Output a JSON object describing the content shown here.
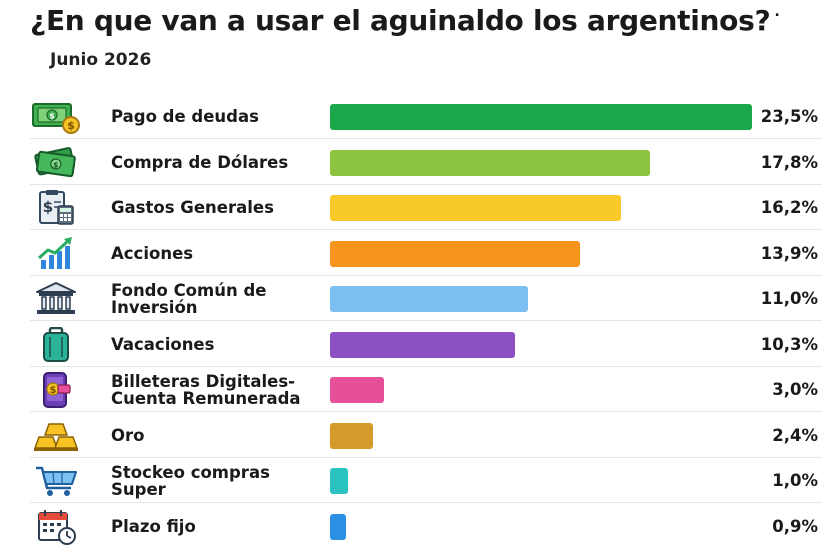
{
  "chart_data": {
    "type": "bar",
    "orientation": "horizontal",
    "title": "¿En que van a usar el aguinaldo los argentinos?",
    "subtitle": "Junio 2026",
    "xlim": [
      0,
      23.5
    ],
    "grid": false,
    "legend": "none",
    "categories": [
      "Pago de deudas",
      "Compra de Dólares",
      "Gastos Generales",
      "Acciones",
      "Fondo Común de Inversión",
      "Vacaciones",
      "Billeteras Digitales-\nCuenta Remunerada",
      "Oro",
      "Stockeo compras Super",
      "Plazo fijo"
    ],
    "values": [
      23.5,
      17.8,
      16.2,
      13.9,
      11.0,
      10.3,
      3.0,
      2.4,
      1.0,
      0.9
    ],
    "value_labels": [
      "23,5%",
      "17,8%",
      "16,2%",
      "13,9%",
      "11,0%",
      "10,3%",
      "3,0%",
      "2,4%",
      "1,0%",
      "0,9%"
    ],
    "colors": [
      "#1aa84a",
      "#8dc43f",
      "#f9c829",
      "#f7941d",
      "#7cc0f2",
      "#8c4fc4",
      "#e84f99",
      "#d49a2a",
      "#2bc3c0",
      "#2b8fe3"
    ],
    "icons": [
      "money-cash-icon",
      "dollar-bills-icon",
      "invoice-calculator-icon",
      "stock-growth-icon",
      "bank-icon",
      "suitcase-icon",
      "digital-wallet-icon",
      "gold-bars-icon",
      "shopping-cart-icon",
      "calendar-clock-icon"
    ]
  }
}
